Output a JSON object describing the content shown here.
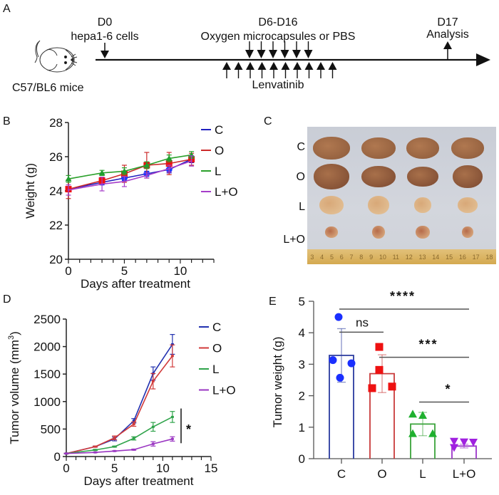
{
  "panel_labels": {
    "a": "A",
    "b": "B",
    "c": "C",
    "d": "D",
    "e": "E"
  },
  "panel_a": {
    "mouse_label": "C57/BL6 mice",
    "d0_day": "D0",
    "d0_event": "hepa1-6 cells",
    "d6_day": "D6-D16",
    "d6_event": "Oxygen microcapsules or PBS",
    "d17_day": "D17",
    "d17_event": "Analysis",
    "lenvatinib_label": "Lenvatinib",
    "oxygen_arrow_count": 6,
    "lenvatinib_arrow_count": 10
  },
  "panel_c": {
    "row_labels": [
      "C",
      "O",
      "L",
      "L+O"
    ],
    "ruler_ticks": [
      "3",
      "4",
      "5",
      "6",
      "7",
      "8",
      "9",
      "10",
      "11",
      "12",
      "13",
      "14",
      "15",
      "16",
      "17",
      "18"
    ]
  },
  "chart_data": [
    {
      "id": "B",
      "type": "line",
      "title": "",
      "xlabel": "Days after treatment",
      "ylabel": "Weight (g)",
      "xlim": [
        0,
        13
      ],
      "ylim": [
        20,
        28
      ],
      "xticks": [
        0,
        5,
        10
      ],
      "yticks": [
        20,
        22,
        24,
        26,
        28
      ],
      "legend_position": "right",
      "x": [
        0,
        3,
        5,
        7,
        9,
        11
      ],
      "series": [
        {
          "name": "C",
          "color": "#1f1fbf",
          "marker_color": "#1a3cff",
          "marker": "circle",
          "values": [
            24.1,
            24.5,
            24.75,
            25.0,
            25.25,
            25.85
          ],
          "err": [
            0.15,
            0.15,
            0.15,
            0.15,
            0.2,
            0.2
          ]
        },
        {
          "name": "O",
          "color": "#cc2a2a",
          "marker_color": "#ee1111",
          "marker": "square",
          "values": [
            24.1,
            24.6,
            25.0,
            25.5,
            25.6,
            25.85
          ],
          "err": [
            0.55,
            0.2,
            0.5,
            0.75,
            0.65,
            0.35
          ]
        },
        {
          "name": "L",
          "color": "#2aa02a",
          "marker_color": "#1f9f2f",
          "marker": "triangle",
          "values": [
            24.7,
            25.05,
            25.15,
            25.5,
            25.9,
            26.1
          ],
          "err": [
            0.2,
            0.15,
            0.2,
            0.2,
            0.2,
            0.2
          ]
        },
        {
          "name": "L+O",
          "color": "#a53dc9",
          "marker_color": "#a53dc9",
          "marker": "none",
          "values": [
            24.05,
            24.4,
            24.55,
            24.9,
            25.3,
            25.75
          ],
          "err": [
            0.3,
            0.4,
            0.3,
            0.15,
            0.2,
            0.3
          ]
        }
      ]
    },
    {
      "id": "D",
      "type": "line",
      "title": "",
      "xlabel": "Days after treatment",
      "ylabel": "Tumor volume (mm",
      "ylabel_sup": "3",
      "ylabel_end": ")",
      "xlim": [
        0,
        15
      ],
      "ylim": [
        0,
        2500
      ],
      "xticks": [
        0,
        5,
        10,
        15
      ],
      "yticks": [
        0,
        500,
        1000,
        1500,
        2000,
        2500
      ],
      "legend_position": "right",
      "x": [
        0,
        3,
        5,
        7,
        9,
        11
      ],
      "series": [
        {
          "name": "C",
          "color": "#2231b0",
          "values": [
            55,
            180,
            320,
            650,
            1510,
            2040
          ],
          "err": [
            5,
            10,
            35,
            40,
            120,
            180
          ]
        },
        {
          "name": "O",
          "color": "#d13a3a",
          "values": [
            55,
            180,
            340,
            590,
            1370,
            1830
          ],
          "err": [
            5,
            10,
            35,
            40,
            140,
            200
          ]
        },
        {
          "name": "L",
          "color": "#2fa34a",
          "values": [
            55,
            120,
            180,
            330,
            540,
            720
          ],
          "err": [
            5,
            10,
            10,
            30,
            80,
            100
          ]
        },
        {
          "name": "L+O",
          "color": "#9a36c2",
          "values": [
            55,
            75,
            100,
            125,
            230,
            320
          ],
          "err": [
            5,
            5,
            5,
            10,
            40,
            40
          ]
        }
      ],
      "annotations": [
        {
          "text": "*",
          "between": [
            "L",
            "L+O"
          ]
        }
      ]
    },
    {
      "id": "E",
      "type": "bar",
      "title": "",
      "xlabel": "",
      "ylabel": "Tumor weight (g)",
      "ylim": [
        0,
        5
      ],
      "yticks": [
        0,
        1,
        2,
        3,
        4,
        5
      ],
      "categories": [
        "C",
        "O",
        "L",
        "L+O"
      ],
      "values": [
        3.28,
        2.7,
        1.1,
        0.4
      ],
      "err": [
        0.85,
        0.6,
        0.37,
        0.06
      ],
      "colors": [
        "#2a3a9e",
        "#c93a3a",
        "#3aa33a",
        "#9b35c9"
      ],
      "marker_colors": [
        "#1a2fff",
        "#ee1111",
        "#1fb02f",
        "#a020e0"
      ],
      "markers": [
        "circle",
        "square",
        "triangle",
        "triangle-down"
      ],
      "points": [
        [
          4.5,
          3.13,
          3.03,
          2.57
        ],
        [
          3.55,
          2.82,
          2.24,
          2.29
        ],
        [
          1.42,
          1.38,
          0.8,
          0.8
        ],
        [
          0.55,
          0.53,
          0.52,
          0.35
        ]
      ],
      "significance": [
        {
          "label": "****",
          "from": "C",
          "to": "L+O",
          "y": 4.75
        },
        {
          "label": "ns",
          "from": "C",
          "to": "O",
          "y": 4.02
        },
        {
          "label": "***",
          "from": "O",
          "to": "L+O",
          "y": 3.22
        },
        {
          "label": "*",
          "from": "L",
          "to": "L+O",
          "y": 1.8
        }
      ]
    }
  ]
}
